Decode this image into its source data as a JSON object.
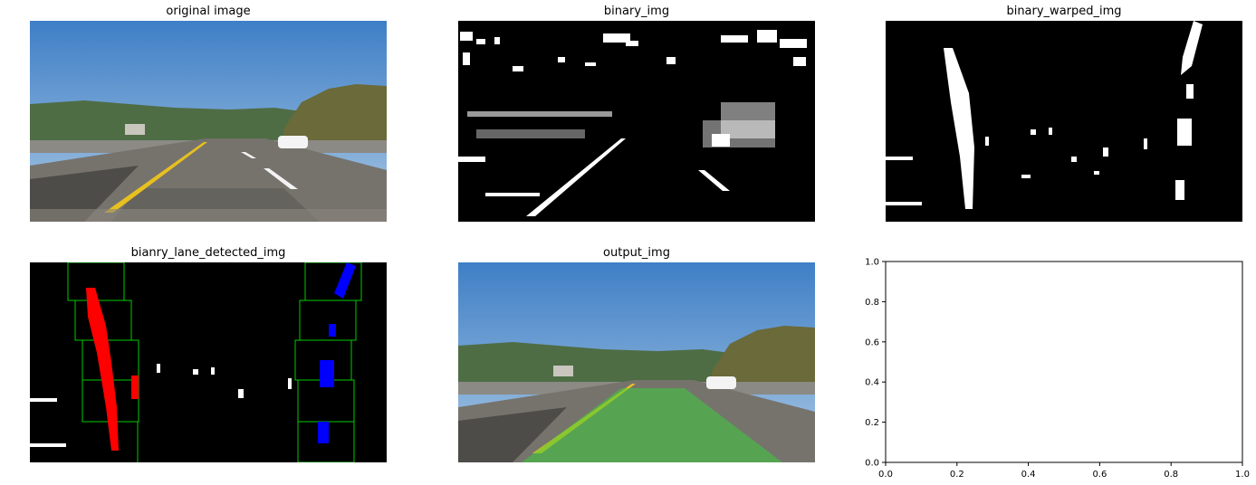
{
  "figure": {
    "panels": [
      {
        "title": "original image"
      },
      {
        "title": "binary_img"
      },
      {
        "title": "binary_warped_img"
      },
      {
        "title": "bianry_lane_detected_img"
      },
      {
        "title": "output_img"
      }
    ]
  },
  "colors": {
    "sky_top": "#3f7fc6",
    "sky_bottom": "#a9c8e4",
    "hills": "#4a6a3c",
    "road": "#6e6b66",
    "yellow_line": "#e8c020",
    "lane_fill": "#3ccc3c",
    "left_lane_pixels": "#ff0000",
    "right_lane_pixels": "#0000ff",
    "window_boxes": "#00cc00"
  },
  "chart_data": {
    "type": "scatter",
    "title": "",
    "xlabel": "",
    "ylabel": "",
    "xlim": [
      0.0,
      1.0
    ],
    "ylim": [
      0.0,
      1.0
    ],
    "grid": false,
    "series": [],
    "xticks": [
      "0.0",
      "0.2",
      "0.4",
      "0.6",
      "0.8",
      "1.0"
    ],
    "yticks": [
      "0.0",
      "0.2",
      "0.4",
      "0.6",
      "0.8",
      "1.0"
    ]
  }
}
